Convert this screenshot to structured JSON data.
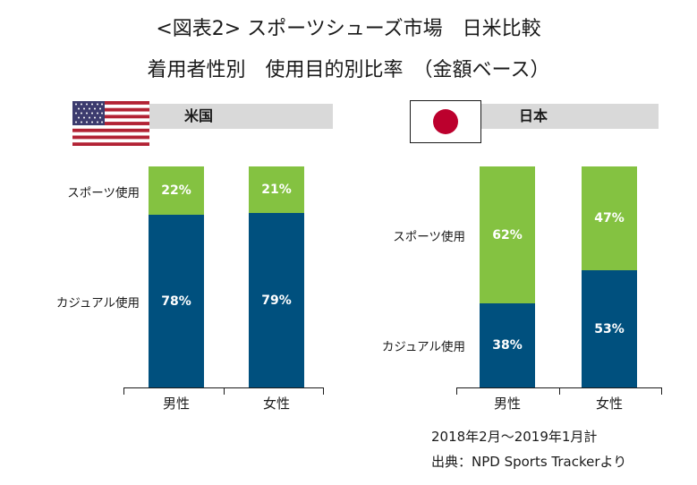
{
  "title": {
    "line1": "<図表2> スポーツシューズ市場　日米比較",
    "line2": "着用者性別　使用目的別比率　（金額ベース）"
  },
  "colors": {
    "sport": "#84c241",
    "casual": "#00507e",
    "header_bar": "#d9d9d9",
    "jp_flag_sun": "#bc002d"
  },
  "chart_data": [
    {
      "type": "bar",
      "stacked": true,
      "title": "米国",
      "flag_icon": "us-flag-icon",
      "categories": [
        "男性",
        "女性"
      ],
      "series": [
        {
          "name": "カジュアル使用",
          "values": [
            78,
            79
          ]
        },
        {
          "name": "スポーツ使用",
          "values": [
            22,
            21
          ]
        }
      ],
      "value_labels": {
        "カジュアル使用": [
          "78%",
          "79%"
        ],
        "スポーツ使用": [
          "22%",
          "21%"
        ]
      },
      "ylim": [
        0,
        100
      ]
    },
    {
      "type": "bar",
      "stacked": true,
      "title": "日本",
      "flag_icon": "jp-flag-icon",
      "categories": [
        "男性",
        "女性"
      ],
      "series": [
        {
          "name": "カジュアル使用",
          "values": [
            38,
            53
          ]
        },
        {
          "name": "スポーツ使用",
          "values": [
            62,
            47
          ]
        }
      ],
      "value_labels": {
        "カジュアル使用": [
          "38%",
          "53%"
        ],
        "スポーツ使用": [
          "62%",
          "47%"
        ]
      },
      "ylim": [
        0,
        100
      ]
    }
  ],
  "notes": {
    "period": "2018年2月～2019年1月計",
    "source": "出典：NPD Sports Trackerより"
  }
}
